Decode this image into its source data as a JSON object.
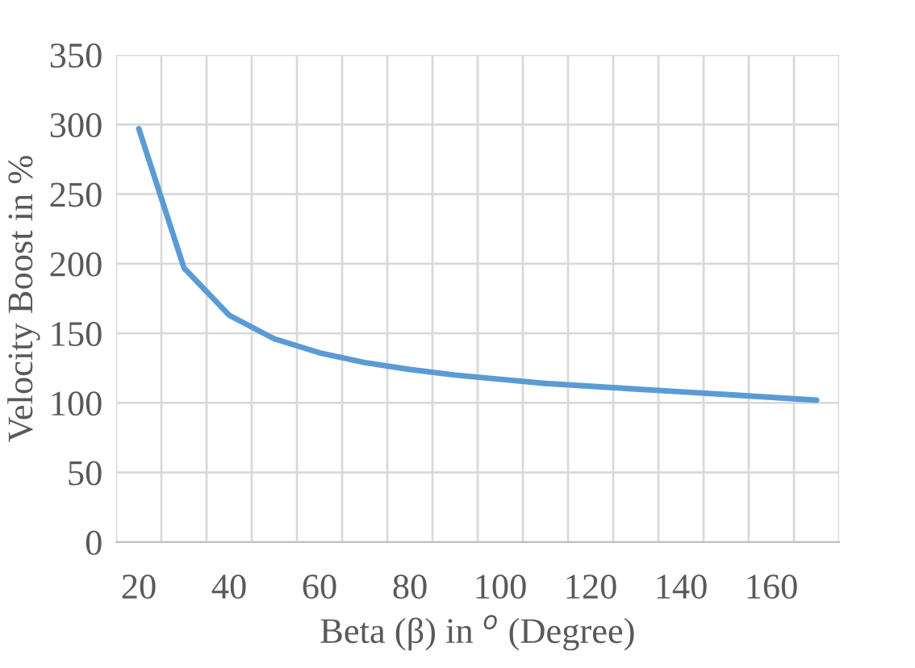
{
  "chart_data": {
    "type": "line",
    "xlabel": "Beta (β) in $^{o}$ (Degree)",
    "ylabel": "Velocity Boost in %",
    "categories": [
      "20",
      null,
      "40",
      null,
      "60",
      null,
      "80",
      null,
      "100",
      null,
      "120",
      null,
      "140",
      null,
      "160",
      null
    ],
    "series": [
      {
        "color": "#5b9bd5",
        "values": [
          297,
          197,
          163,
          146,
          136,
          129,
          124,
          120,
          117,
          114,
          112,
          110,
          108,
          106,
          104,
          102
        ]
      }
    ],
    "ylim": [
      0,
      350
    ],
    "yticks": [
      0,
      50,
      100,
      150,
      200,
      250,
      300,
      350
    ],
    "grid": true,
    "marker": "none",
    "line_style": "solid"
  }
}
